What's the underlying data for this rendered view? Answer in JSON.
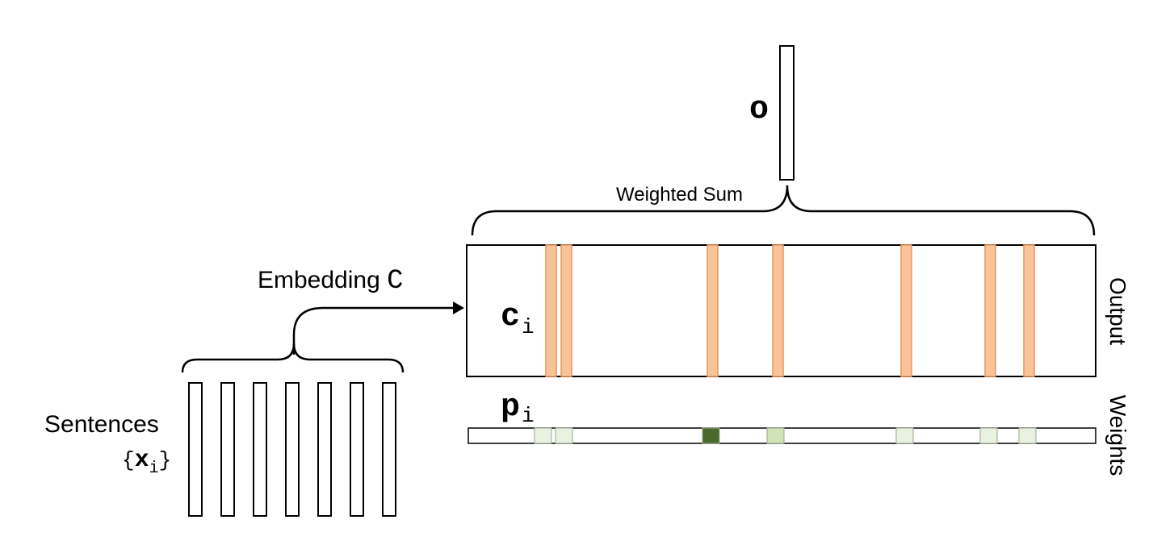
{
  "labels": {
    "output_vector": "o",
    "weighted_sum": "Weighted Sum",
    "embedding_prefix": "Embedding ",
    "embedding_symbol": "C",
    "ci_main": "c",
    "ci_sub": "i",
    "pi_main": "p",
    "pi_sub": "i",
    "output_side": "Output",
    "weights_side": "Weights",
    "sentences": "Sentences",
    "xi_open": "{",
    "xi_main": "x",
    "xi_sub": "i",
    "xi_close": "}"
  },
  "colors": {
    "stroke": "#000000",
    "memory_column": "#fac49a",
    "memory_column_stroke": "#e8955a",
    "weight_light": "#e9f1e0",
    "weight_mid": "#cfe3b6",
    "weight_dark": "#4a6a2c"
  },
  "sentence_count": 7,
  "weights": [
    {
      "name": "weight-cell-1",
      "level": "light"
    },
    {
      "name": "weight-cell-2",
      "level": "light"
    },
    {
      "name": "weight-cell-3",
      "level": "dark"
    },
    {
      "name": "weight-cell-4",
      "level": "mid"
    },
    {
      "name": "weight-cell-5",
      "level": "light"
    },
    {
      "name": "weight-cell-6",
      "level": "light"
    },
    {
      "name": "weight-cell-7",
      "level": "light"
    }
  ]
}
